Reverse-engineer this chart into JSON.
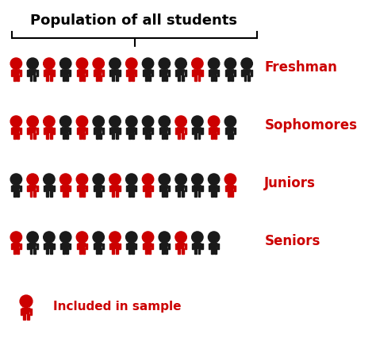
{
  "title": "Population of all students",
  "title_fontsize": 13,
  "rows": [
    {
      "label": "Freshman",
      "colors": [
        "R",
        "B",
        "R",
        "B",
        "R",
        "R",
        "B",
        "R",
        "B",
        "B",
        "B",
        "R",
        "B",
        "B",
        "B"
      ]
    },
    {
      "label": "Sophomores",
      "colors": [
        "R",
        "R",
        "R",
        "B",
        "R",
        "B",
        "B",
        "B",
        "B",
        "B",
        "R",
        "B",
        "R",
        "B"
      ]
    },
    {
      "label": "Juniors",
      "colors": [
        "B",
        "R",
        "B",
        "R",
        "R",
        "B",
        "R",
        "B",
        "R",
        "B",
        "B",
        "B",
        "B",
        "R"
      ]
    },
    {
      "label": "Seniors",
      "colors": [
        "R",
        "B",
        "B",
        "B",
        "R",
        "B",
        "R",
        "B",
        "R",
        "B",
        "R",
        "B",
        "B"
      ]
    }
  ],
  "red": "#CC0000",
  "black": "#1a1a1a",
  "label_color": "#CC0000",
  "legend_text": "Included in sample",
  "bg_color": "#ffffff",
  "n_cols": 15,
  "fig_width": 4.74,
  "fig_height": 4.45,
  "dpi": 100
}
